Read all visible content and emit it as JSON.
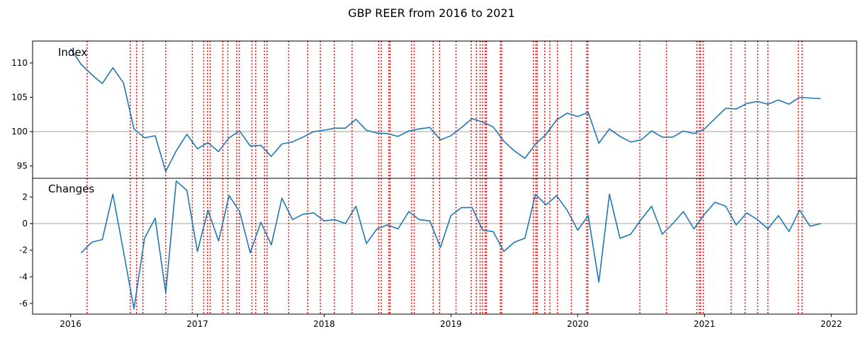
{
  "chart_data": {
    "type": "line",
    "title": "GBP REER from 2016 to 2021",
    "x_tick_labels": [
      "2016",
      "2017",
      "2018",
      "2019",
      "2020",
      "2021",
      "2022"
    ],
    "x_ticks": [
      2016,
      2017,
      2018,
      2019,
      2020,
      2021,
      2022
    ],
    "xlim": [
      2015.7,
      2022.2
    ],
    "event_line_color": "#ff0000",
    "series_color": "#1f77b4",
    "reference_line_color": "#c0c0c0",
    "events": [
      2016.13,
      2016.47,
      2016.52,
      2016.57,
      2016.75,
      2016.96,
      2017.05,
      2017.08,
      2017.1,
      2017.2,
      2017.24,
      2017.31,
      2017.33,
      2017.43,
      2017.46,
      2017.53,
      2017.55,
      2017.72,
      2017.87,
      2017.97,
      2018.08,
      2018.22,
      2018.43,
      2018.45,
      2018.51,
      2018.52,
      2018.69,
      2018.71,
      2018.86,
      2018.91,
      2019.04,
      2019.16,
      2019.2,
      2019.23,
      2019.25,
      2019.27,
      2019.28,
      2019.39,
      2019.4,
      2019.65,
      2019.67,
      2019.68,
      2019.74,
      2019.78,
      2019.84,
      2019.95,
      2020.07,
      2020.08,
      2020.49,
      2020.7,
      2020.94,
      2020.96,
      2020.97,
      2020.99,
      2021.21,
      2021.32,
      2021.42,
      2021.5,
      2021.74,
      2021.77
    ],
    "panels": [
      {
        "label": "Index",
        "ylim": [
          93.2,
          113.2
        ],
        "yticks": [
          95,
          100,
          105,
          110
        ],
        "reference_value": 100,
        "series": [
          {
            "x": [
              2016.0,
              2016.083,
              2016.167,
              2016.25,
              2016.333,
              2016.417,
              2016.5,
              2016.583,
              2016.667,
              2016.75,
              2016.833,
              2016.917,
              2017.0,
              2017.083,
              2017.167,
              2017.25,
              2017.333,
              2017.417,
              2017.5,
              2017.583,
              2017.667,
              2017.75,
              2017.833,
              2017.917,
              2018.0,
              2018.083,
              2018.167,
              2018.25,
              2018.333,
              2018.417,
              2018.5,
              2018.583,
              2018.667,
              2018.75,
              2018.833,
              2018.917,
              2019.0,
              2019.083,
              2019.167,
              2019.25,
              2019.333,
              2019.417,
              2019.5,
              2019.583,
              2019.667,
              2019.75,
              2019.833,
              2019.917,
              2020.0,
              2020.083,
              2020.167,
              2020.25,
              2020.333,
              2020.417,
              2020.5,
              2020.583,
              2020.667,
              2020.75,
              2020.833,
              2020.917,
              2021.0,
              2021.083,
              2021.167,
              2021.25,
              2021.333,
              2021.417,
              2021.5,
              2021.583,
              2021.667,
              2021.75,
              2021.833,
              2021.917
            ],
            "y": [
              112.1,
              109.8,
              108.3,
              107.0,
              109.3,
              107.1,
              100.4,
              99.1,
              99.4,
              94.2,
              97.2,
              99.6,
              97.5,
              98.4,
              97.1,
              99.1,
              100.1,
              97.9,
              98.0,
              96.4,
              98.2,
              98.5,
              99.2,
              100.0,
              100.2,
              100.5,
              100.5,
              101.8,
              100.2,
              99.8,
              99.7,
              99.3,
              100.1,
              100.4,
              100.6,
              98.8,
              99.4,
              100.6,
              101.9,
              101.4,
              100.7,
              98.6,
              97.2,
              96.1,
              98.2,
              99.6,
              101.7,
              102.7,
              102.2,
              102.8,
              98.3,
              100.4,
              99.3,
              98.5,
              98.8,
              100.1,
              99.2,
              99.2,
              100.1,
              99.7,
              100.4,
              101.9,
              103.4,
              103.3,
              104.1,
              104.4,
              104.0,
              104.6,
              104.0,
              105.0,
              104.9,
              104.8
            ]
          }
        ]
      },
      {
        "label": "Changes",
        "ylim": [
          -6.8,
          3.4
        ],
        "yticks": [
          -6,
          -4,
          -2,
          0,
          2
        ],
        "reference_value": 0,
        "series": [
          {
            "x": [
              2016.083,
              2016.167,
              2016.25,
              2016.333,
              2016.417,
              2016.5,
              2016.583,
              2016.667,
              2016.75,
              2016.833,
              2016.917,
              2017.0,
              2017.083,
              2017.167,
              2017.25,
              2017.333,
              2017.417,
              2017.5,
              2017.583,
              2017.667,
              2017.75,
              2017.833,
              2017.917,
              2018.0,
              2018.083,
              2018.167,
              2018.25,
              2018.333,
              2018.417,
              2018.5,
              2018.583,
              2018.667,
              2018.75,
              2018.833,
              2018.917,
              2019.0,
              2019.083,
              2019.167,
              2019.25,
              2019.333,
              2019.417,
              2019.5,
              2019.583,
              2019.667,
              2019.75,
              2019.833,
              2019.917,
              2020.0,
              2020.083,
              2020.167,
              2020.25,
              2020.333,
              2020.417,
              2020.5,
              2020.583,
              2020.667,
              2020.75,
              2020.833,
              2020.917,
              2021.0,
              2021.083,
              2021.167,
              2021.25,
              2021.333,
              2021.417,
              2021.5,
              2021.583,
              2021.667,
              2021.75,
              2021.833,
              2021.917
            ],
            "y": [
              -2.2,
              -1.4,
              -1.2,
              2.2,
              -2.1,
              -6.4,
              -1.1,
              0.4,
              -5.2,
              3.2,
              2.5,
              -2.1,
              1.0,
              -1.3,
              2.1,
              0.9,
              -2.2,
              0.1,
              -1.6,
              1.9,
              0.3,
              0.7,
              0.8,
              0.2,
              0.3,
              0.0,
              1.3,
              -1.5,
              -0.4,
              -0.1,
              -0.4,
              0.9,
              0.3,
              0.2,
              -1.8,
              0.6,
              1.2,
              1.2,
              -0.5,
              -0.6,
              -2.1,
              -1.4,
              -1.1,
              2.2,
              1.4,
              2.1,
              1.0,
              -0.5,
              0.6,
              -4.4,
              2.2,
              -1.1,
              -0.8,
              0.3,
              1.3,
              -0.8,
              0.0,
              0.9,
              -0.4,
              0.7,
              1.6,
              1.3,
              -0.1,
              0.8,
              0.3,
              -0.4,
              0.6,
              -0.6,
              1.0,
              -0.2,
              0.0
            ]
          }
        ]
      }
    ]
  }
}
